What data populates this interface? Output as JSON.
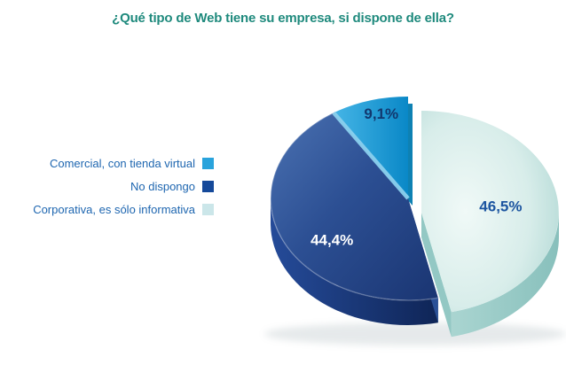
{
  "page": {
    "background": "#ffffff"
  },
  "chart_data": {
    "type": "pie",
    "style": "3d-exploded",
    "title": "¿Qué tipo de Web tiene su empresa, si dispone de ella?",
    "title_color": "#1f8a7d",
    "unit": "%",
    "legend_position": "left",
    "legend_text_color": "#1e66b0",
    "slices": [
      {
        "label": "Comercial, con tienda virtual",
        "value": 9.1,
        "display": "9,1%",
        "legend_swatch": "#29a3dc",
        "label_color": "#12386f",
        "label_r": 0.85,
        "exploded": true,
        "colors": {
          "top": [
            "#45b5e6",
            "#0a88c7"
          ],
          "edge_highlight": "#8bd0ee",
          "cut": "#0e81b3"
        }
      },
      {
        "label": "No dispongo",
        "value": 44.4,
        "display": "44,4%",
        "legend_swatch": "#15499a",
        "label_color": "#ffffff",
        "label_r": 0.6,
        "exploded": true,
        "colors": {
          "top": [
            "#4b72b2",
            "#2c4f93",
            "#1a3572"
          ],
          "side": [
            "#254b99",
            "#0f2557"
          ],
          "cut": "#2a5097",
          "arc_highlight": "rgba(255,255,255,0.25)"
        }
      },
      {
        "label": "Corporativa, es sólo informativa",
        "value": 46.5,
        "display": "46,5%",
        "legend_swatch": "#cbe6e9",
        "label_color": "#1c55a0",
        "label_r": 0.58,
        "exploded": false,
        "colors": {
          "top": [
            "#f0f9f7",
            "#d8edea",
            "#a9d4d0"
          ],
          "side": [
            "#aad5d1",
            "#88c0bc"
          ],
          "cut": "#93c8c4"
        }
      }
    ]
  }
}
